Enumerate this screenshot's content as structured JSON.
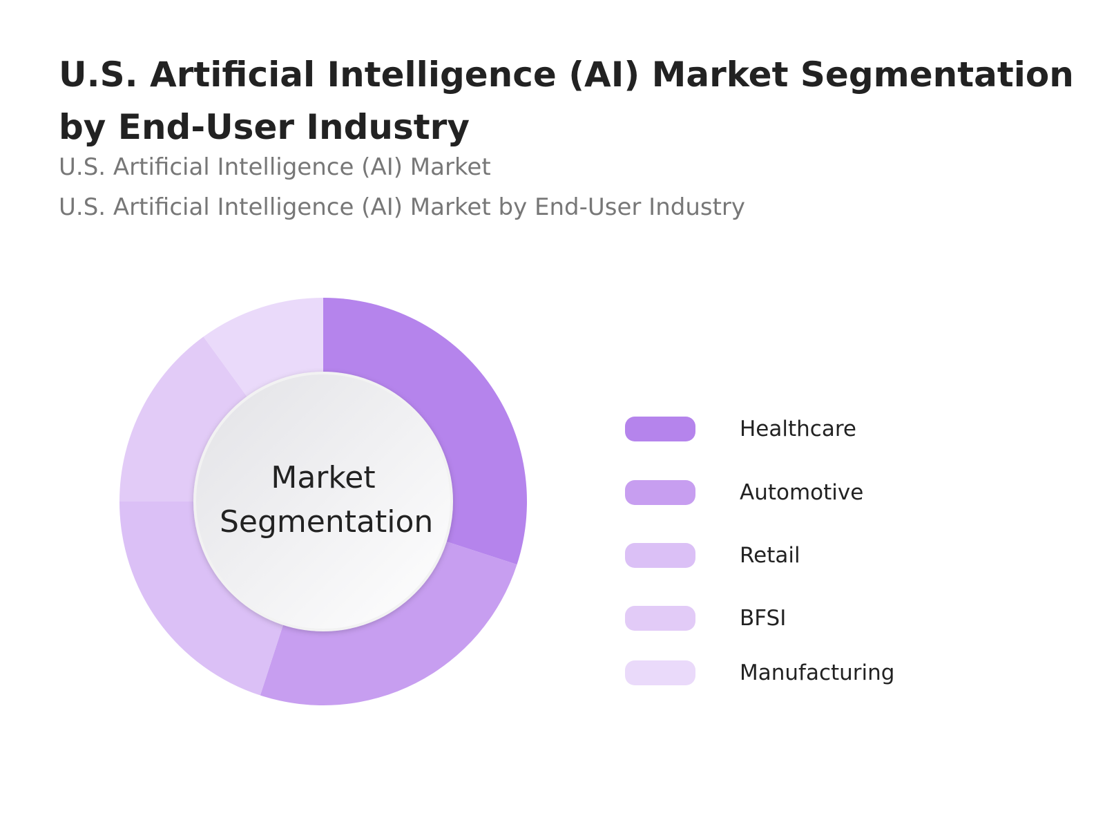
{
  "chart_data": {
    "type": "pie",
    "title": "U.S. Artificial Intelligence (AI) Market  Segmentation by End-User Industry",
    "subtitles": [
      "U.S. Artificial Intelligence (AI) Market",
      "U.S. Artificial Intelligence (AI) Market by End-User Industry"
    ],
    "center_label": "Market Segmentation",
    "categories": [
      "Healthcare",
      "Automotive",
      "Retail",
      "BFSI",
      "Manufacturing"
    ],
    "values": [
      30,
      25,
      20,
      15,
      10
    ],
    "colors": [
      "#b584ec",
      "#c79ef0",
      "#dbc0f6",
      "#e2cbf7",
      "#eadafa"
    ]
  }
}
